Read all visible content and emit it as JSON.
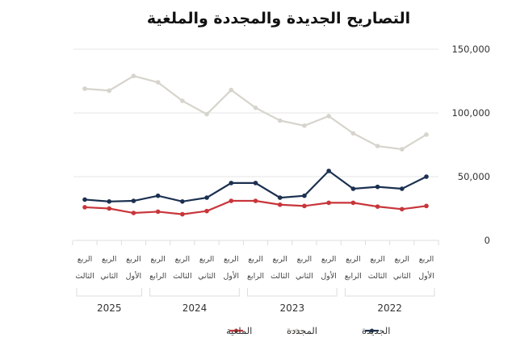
{
  "chart_data": {
    "type": "line",
    "title": "التصاريح الجديدة والمجددة والملغية",
    "x_direction": "right-to-left",
    "categories": [
      {
        "year": "2022",
        "quarter": [
          "الربع",
          "الأول"
        ]
      },
      {
        "year": "2022",
        "quarter": [
          "الربع",
          "الثاني"
        ]
      },
      {
        "year": "2022",
        "quarter": [
          "الربع",
          "الثالث"
        ]
      },
      {
        "year": "2022",
        "quarter": [
          "الربع",
          "الرابع"
        ]
      },
      {
        "year": "2023",
        "quarter": [
          "الربع",
          "الأول"
        ]
      },
      {
        "year": "2023",
        "quarter": [
          "الربع",
          "الثاني"
        ]
      },
      {
        "year": "2023",
        "quarter": [
          "الربع",
          "الثالث"
        ]
      },
      {
        "year": "2023",
        "quarter": [
          "الربع",
          "الرابع"
        ]
      },
      {
        "year": "2024",
        "quarter": [
          "الربع",
          "الأول"
        ]
      },
      {
        "year": "2024",
        "quarter": [
          "الربع",
          "الثاني"
        ]
      },
      {
        "year": "2024",
        "quarter": [
          "الربع",
          "الثالث"
        ]
      },
      {
        "year": "2024",
        "quarter": [
          "الربع",
          "الرابع"
        ]
      },
      {
        "year": "2025",
        "quarter": [
          "الربع",
          "الأول"
        ]
      },
      {
        "year": "2025",
        "quarter": [
          "الربع",
          "الثاني"
        ]
      },
      {
        "year": "2025",
        "quarter": [
          "الربع",
          "الثالث"
        ]
      }
    ],
    "years": [
      "2022",
      "2023",
      "2024",
      "2025"
    ],
    "series": [
      {
        "name": "الجديدة",
        "color": "#1b3050",
        "values": [
          50000,
          40500,
          42000,
          40500,
          54500,
          35000,
          33500,
          45000,
          45000,
          33500,
          30500,
          35000,
          31000,
          30500,
          32000
        ]
      },
      {
        "name": "المجددة",
        "color": "#d6d4cc",
        "values": [
          83000,
          71500,
          74000,
          84000,
          97500,
          90000,
          94000,
          104000,
          118000,
          99000,
          109500,
          124000,
          129000,
          117500,
          119000
        ]
      },
      {
        "name": "الملغية",
        "color": "#c8353a",
        "values": [
          27000,
          24500,
          26500,
          29500,
          29500,
          27000,
          28000,
          31000,
          31000,
          23000,
          20500,
          22500,
          21500,
          25000,
          26000
        ]
      }
    ],
    "yticks": [
      "0",
      "50,000",
      "100,000",
      "150,000"
    ],
    "ylim": [
      0,
      150000
    ],
    "grid": true,
    "yaxis_position": "right",
    "legend_placement": "bottom"
  }
}
